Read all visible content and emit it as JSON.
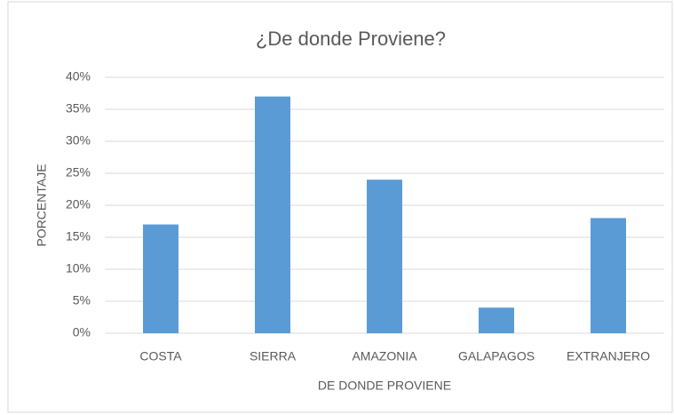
{
  "chart_data": {
    "type": "bar",
    "title": "¿De donde Proviene?",
    "x_label": "DE DONDE PROVIENE",
    "y_label": "PORCENTAJE",
    "categories": [
      "COSTA",
      "SIERRA",
      "AMAZONIA",
      "GALAPAGOS",
      "EXTRANJERO"
    ],
    "values": [
      17,
      37,
      24,
      4,
      18
    ],
    "color": "#5b9bd5",
    "ylim": [
      0,
      40
    ],
    "yticks": [
      {
        "value": 0,
        "label": "0%"
      },
      {
        "value": 5,
        "label": "5%"
      },
      {
        "value": 10,
        "label": "10%"
      },
      {
        "value": 15,
        "label": "15%"
      },
      {
        "value": 20,
        "label": "20%"
      },
      {
        "value": 25,
        "label": "25%"
      },
      {
        "value": 30,
        "label": "30%"
      },
      {
        "value": 35,
        "label": "35%"
      },
      {
        "value": 40,
        "label": "40%"
      }
    ],
    "grid": true
  }
}
